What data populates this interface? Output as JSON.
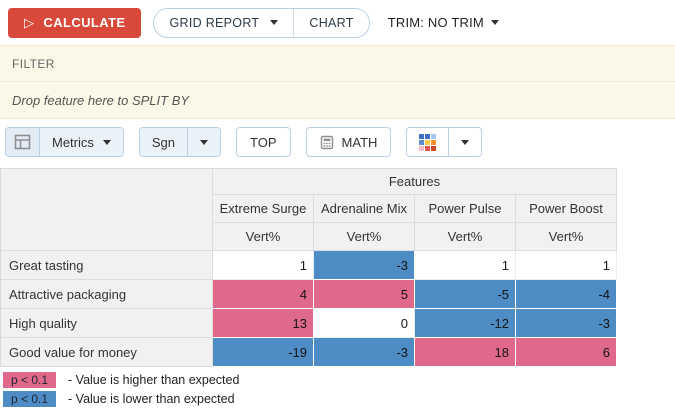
{
  "top_bar": {
    "calculate": "CALCULATE",
    "grid_report": "GRID REPORT",
    "chart": "CHART",
    "trim": "TRIM: NO TRIM"
  },
  "drop_bars": {
    "filter": "FILTER",
    "split_by": "Drop feature here to SPLIT BY"
  },
  "tools": {
    "metrics": "Metrics",
    "sgn": "Sgn",
    "top": "TOP",
    "math": "MATH",
    "palette_colors": [
      [
        "#3f6ec0",
        "#3f6ec0",
        "#a6c8ec"
      ],
      [
        "#5b8bd5",
        "#f7c948",
        "#ef9335"
      ],
      [
        "#f5bdc8",
        "#e15555",
        "#cc4a2b"
      ]
    ]
  },
  "table": {
    "group_header": "Features",
    "columns": [
      "Extreme Surge",
      "Adrenaline Mix",
      "Power Pulse",
      "Power Boost"
    ],
    "metric_label": "Vert%",
    "rows": [
      {
        "label": "Great tasting",
        "values": [
          1,
          -3,
          1,
          1
        ],
        "sig": [
          "none",
          "lower",
          "none",
          "none"
        ]
      },
      {
        "label": "Attractive packaging",
        "values": [
          4,
          5,
          -5,
          -4
        ],
        "sig": [
          "higher",
          "higher",
          "lower",
          "lower"
        ]
      },
      {
        "label": "High quality",
        "values": [
          13,
          0,
          -12,
          -3
        ],
        "sig": [
          "higher",
          "none",
          "lower",
          "lower"
        ]
      },
      {
        "label": "Good value for money",
        "values": [
          -19,
          -3,
          18,
          6
        ],
        "sig": [
          "lower",
          "lower",
          "higher",
          "higher"
        ]
      }
    ]
  },
  "legend": [
    {
      "badge": "p < 0.1",
      "sig": "higher",
      "text": "- Value is higher than expected"
    },
    {
      "badge": "p < 0.1",
      "sig": "lower",
      "text": "- Value is lower than expected"
    }
  ],
  "colors": {
    "higher": "#e0698b",
    "lower": "#4d8cc4",
    "calculate_red": "#d9493a"
  }
}
